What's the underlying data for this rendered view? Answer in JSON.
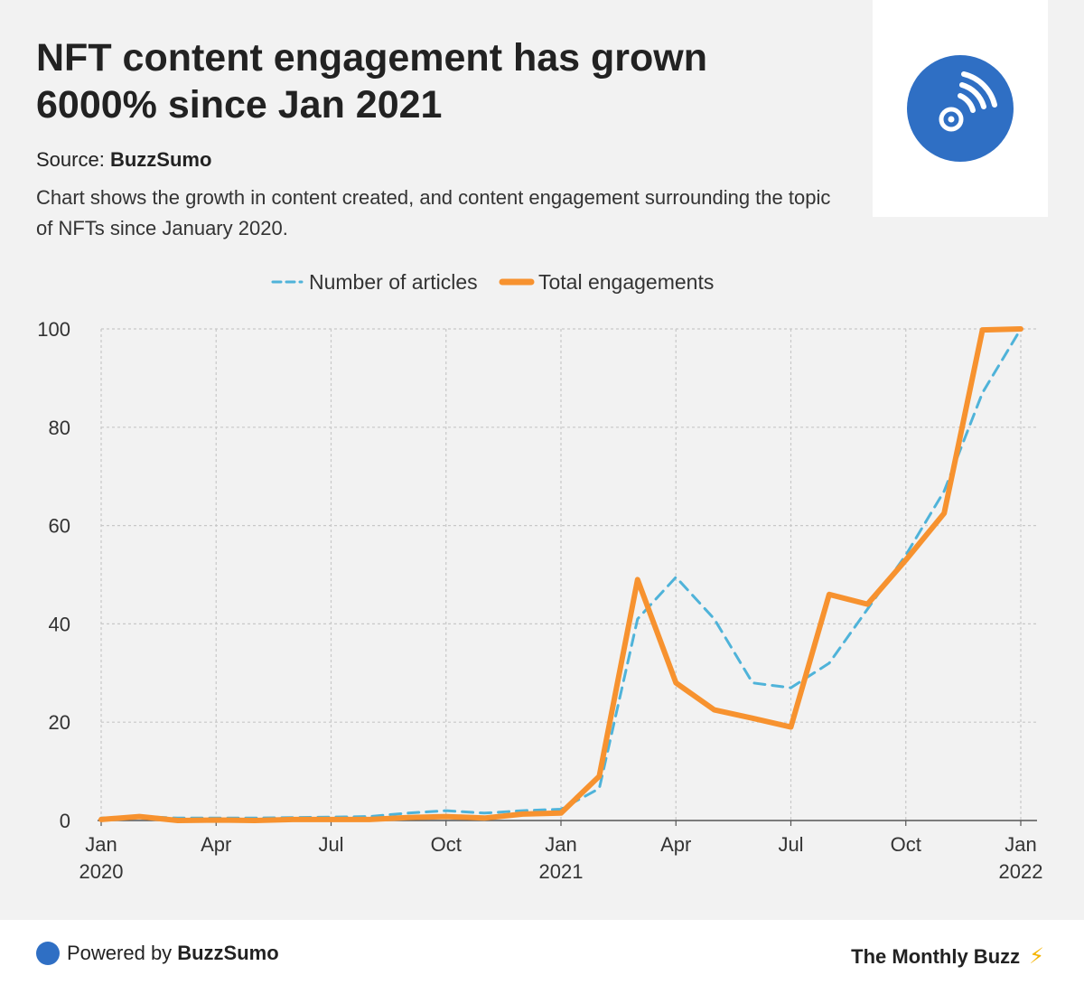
{
  "header": {
    "title": "NFT content engagement has grown 6000% since Jan 2021",
    "source_label": "Source:",
    "source_name": "BuzzSumo",
    "description": "Chart shows the growth in content created, and content engagement surrounding the topic of NFTs since January 2020.",
    "logo_icon": "buzzsumo-signal-icon",
    "logo_color": "#2f6fc4"
  },
  "chart_data": {
    "type": "line",
    "title": "",
    "xlabel": "",
    "ylabel": "",
    "ylim": [
      0,
      100
    ],
    "yticks": [
      0,
      20,
      40,
      60,
      80,
      100
    ],
    "x_ticks": [
      {
        "index": 0,
        "line1": "Jan",
        "line2": "2020"
      },
      {
        "index": 3,
        "line1": "Apr",
        "line2": ""
      },
      {
        "index": 6,
        "line1": "Jul",
        "line2": ""
      },
      {
        "index": 9,
        "line1": "Oct",
        "line2": ""
      },
      {
        "index": 12,
        "line1": "Jan",
        "line2": "2021"
      },
      {
        "index": 15,
        "line1": "Apr",
        "line2": ""
      },
      {
        "index": 18,
        "line1": "Jul",
        "line2": ""
      },
      {
        "index": 21,
        "line1": "Oct",
        "line2": ""
      },
      {
        "index": 24,
        "line1": "Jan",
        "line2": "2022"
      }
    ],
    "x": [
      "Jan 2020",
      "Feb 2020",
      "Mar 2020",
      "Apr 2020",
      "May 2020",
      "Jun 2020",
      "Jul 2020",
      "Aug 2020",
      "Sep 2020",
      "Oct 2020",
      "Nov 2020",
      "Dec 2020",
      "Jan 2021",
      "Feb 2021",
      "Mar 2021",
      "Apr 2021",
      "May 2021",
      "Jun 2021",
      "Jul 2021",
      "Aug 2021",
      "Sep 2021",
      "Oct 2021",
      "Nov 2021",
      "Dec 2021",
      "Jan 2022"
    ],
    "grid": true,
    "legend_position": "top-center",
    "series": [
      {
        "name": "Number of articles",
        "color": "#4fb3d9",
        "style": "dashed",
        "values": [
          0.5,
          0.8,
          0.5,
          0.5,
          0.5,
          0.6,
          0.7,
          0.8,
          1.5,
          2.0,
          1.5,
          2.0,
          2.3,
          6.5,
          41,
          49.5,
          41,
          28,
          27,
          32,
          43,
          54,
          67,
          87,
          100
        ]
      },
      {
        "name": "Total engagements",
        "color": "#f7922f",
        "style": "solid",
        "values": [
          0.2,
          0.8,
          0.0,
          0.1,
          0.0,
          0.2,
          0.2,
          0.2,
          0.6,
          0.8,
          0.5,
          1.3,
          1.5,
          9,
          49,
          28,
          22.5,
          20.8,
          19,
          46,
          44,
          53,
          62.5,
          99.8,
          100
        ]
      }
    ]
  },
  "footer": {
    "powered_label": "Powered by",
    "powered_brand": "BuzzSumo",
    "brand": "The Monthly Buzz",
    "bolt_icon": "⚡"
  }
}
